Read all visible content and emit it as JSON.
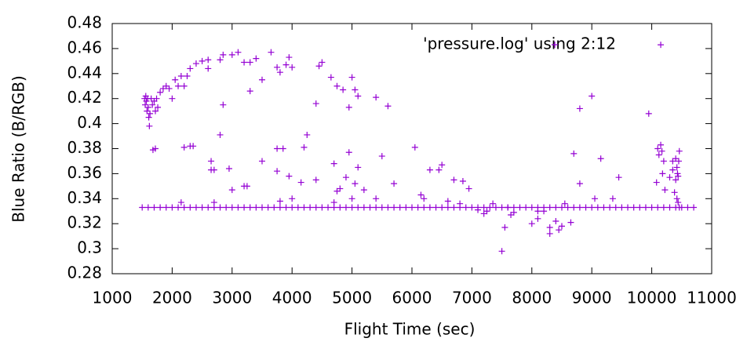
{
  "chart_data": {
    "type": "scatter",
    "xlabel": "Flight Time (sec)",
    "ylabel": "Blue Ratio (B/RGB)",
    "xlim": [
      1000,
      11000
    ],
    "xticks": [
      1000,
      2000,
      3000,
      4000,
      5000,
      6000,
      7000,
      8000,
      9000,
      10000,
      11000
    ],
    "ylim": [
      0.28,
      0.48
    ],
    "yticks": [
      0.28,
      0.3,
      0.32,
      0.34,
      0.36,
      0.38,
      0.4,
      0.42,
      0.44,
      0.46,
      0.48
    ],
    "legend": "top-right",
    "series": [
      {
        "name": "'pressure.log' using 2:12",
        "color": "#9400d3",
        "x": [
          1540,
          1550,
          1560,
          1570,
          1580,
          1590,
          1600,
          1610,
          1620,
          1630,
          1650,
          1670,
          1700,
          1720,
          1740,
          1760,
          1680,
          1720,
          1800,
          1850,
          1900,
          1950,
          2000,
          2050,
          2100,
          2150,
          2200,
          2250,
          2300,
          2400,
          2500,
          2600,
          2600,
          2800,
          2850,
          3000,
          3100,
          3200,
          3300,
          3400,
          3500,
          3650,
          3750,
          3800,
          3900,
          3950,
          4000,
          4450,
          4500,
          4650,
          4750,
          4850,
          4950,
          5000,
          5050,
          5100,
          5400,
          5600,
          4400,
          3300,
          2850,
          2200,
          2300,
          2350,
          2800,
          2650,
          2700,
          2650,
          2950,
          3000,
          3200,
          3250,
          3500,
          3750,
          3850,
          3750,
          3950,
          4200,
          4250,
          4150,
          4400,
          4700,
          4750,
          4800,
          4950,
          5000,
          5100,
          5050,
          5200,
          5500,
          6050,
          6300,
          6450,
          6500,
          6700,
          6850,
          5700,
          5400,
          4700,
          4900,
          4000,
          3800,
          2700,
          2150,
          6150,
          6200,
          6600,
          6800,
          6950,
          7100,
          7250,
          7350,
          7500,
          7550,
          7600,
          7700,
          7650,
          8000,
          8100,
          8200,
          8300,
          8300,
          8400,
          8500,
          8650,
          8550,
          8700,
          8800,
          8800,
          9000,
          9050,
          9150,
          9350,
          9450,
          9950,
          10150,
          10120,
          7200,
          8100,
          8450,
          10100,
          10150,
          10170,
          10200,
          10180,
          10220,
          10080,
          10350,
          10400,
          10420,
          10430,
          10440,
          10450,
          10460,
          10380,
          10400,
          10420,
          10440,
          10460,
          10300,
          10350,
          1500,
          1600,
          1700,
          1800,
          1900,
          2000,
          2100,
          2200,
          2300,
          2400,
          2500,
          2600,
          2700,
          2800,
          2900,
          3000,
          3100,
          3200,
          3300,
          3400,
          3500,
          3600,
          3700,
          3800,
          3900,
          4000,
          4100,
          4200,
          4300,
          4400,
          4500,
          4600,
          4700,
          4800,
          4900,
          5000,
          5100,
          5200,
          5300,
          5400,
          5500,
          5600,
          5700,
          5800,
          5900,
          6000,
          6100,
          6200,
          6300,
          6400,
          6500,
          6600,
          6700,
          6800,
          6900,
          7000,
          7100,
          7200,
          7300,
          7400,
          7500,
          7600,
          7700,
          7800,
          7900,
          8000,
          8100,
          8200,
          8300,
          8400,
          8500,
          8600,
          8700,
          8800,
          8900,
          9000,
          9100,
          9200,
          9300,
          9400,
          9500,
          9600,
          9700,
          9800,
          9900,
          10000,
          10100,
          10200,
          10300,
          10400,
          10500,
          10600,
          10700
        ],
        "values": [
          0.42,
          0.415,
          0.422,
          0.418,
          0.41,
          0.42,
          0.413,
          0.405,
          0.398,
          0.408,
          0.42,
          0.415,
          0.418,
          0.41,
          0.42,
          0.413,
          0.379,
          0.38,
          0.425,
          0.428,
          0.43,
          0.428,
          0.42,
          0.435,
          0.43,
          0.438,
          0.43,
          0.438,
          0.444,
          0.448,
          0.45,
          0.451,
          0.444,
          0.451,
          0.455,
          0.455,
          0.457,
          0.449,
          0.449,
          0.452,
          0.435,
          0.457,
          0.445,
          0.441,
          0.447,
          0.453,
          0.445,
          0.446,
          0.449,
          0.437,
          0.43,
          0.427,
          0.413,
          0.437,
          0.427,
          0.422,
          0.421,
          0.414,
          0.416,
          0.426,
          0.415,
          0.381,
          0.382,
          0.382,
          0.391,
          0.37,
          0.363,
          0.363,
          0.364,
          0.347,
          0.35,
          0.35,
          0.37,
          0.38,
          0.38,
          0.362,
          0.358,
          0.381,
          0.391,
          0.353,
          0.355,
          0.368,
          0.346,
          0.348,
          0.377,
          0.34,
          0.365,
          0.352,
          0.347,
          0.374,
          0.381,
          0.363,
          0.363,
          0.367,
          0.355,
          0.354,
          0.352,
          0.34,
          0.337,
          0.357,
          0.34,
          0.338,
          0.337,
          0.337,
          0.343,
          0.34,
          0.338,
          0.336,
          0.348,
          0.331,
          0.33,
          0.336,
          0.298,
          0.317,
          0.333,
          0.329,
          0.327,
          0.32,
          0.324,
          0.33,
          0.312,
          0.317,
          0.322,
          0.318,
          0.321,
          0.336,
          0.376,
          0.352,
          0.412,
          0.422,
          0.34,
          0.372,
          0.34,
          0.357,
          0.408,
          0.463,
          0.375,
          0.328,
          0.33,
          0.315,
          0.38,
          0.383,
          0.378,
          0.37,
          0.36,
          0.347,
          0.353,
          0.363,
          0.372,
          0.365,
          0.36,
          0.358,
          0.37,
          0.378,
          0.345,
          0.355,
          0.34,
          0.337,
          0.333,
          0.357,
          0.37,
          0.333,
          0.333,
          0.333,
          0.333,
          0.333,
          0.333,
          0.333,
          0.333,
          0.333,
          0.333,
          0.333,
          0.333,
          0.333,
          0.333,
          0.333,
          0.333,
          0.333,
          0.333,
          0.333,
          0.333,
          0.333,
          0.333,
          0.333,
          0.333,
          0.333,
          0.333,
          0.333,
          0.333,
          0.333,
          0.333,
          0.333,
          0.333,
          0.333,
          0.333,
          0.333,
          0.333,
          0.333,
          0.333,
          0.333,
          0.333,
          0.333,
          0.333,
          0.333,
          0.333,
          0.333,
          0.333,
          0.333,
          0.333,
          0.333,
          0.333,
          0.333,
          0.333,
          0.333,
          0.333,
          0.333,
          0.333,
          0.333,
          0.333,
          0.333,
          0.333,
          0.333,
          0.333,
          0.333,
          0.333,
          0.333,
          0.333,
          0.333,
          0.333,
          0.333,
          0.333,
          0.333,
          0.333,
          0.333,
          0.333,
          0.333,
          0.333,
          0.333,
          0.333,
          0.333,
          0.333,
          0.333,
          0.333,
          0.333,
          0.333,
          0.333,
          0.333,
          0.333,
          0.333,
          0.333,
          0.333,
          0.333,
          0.333,
          0.333
        ]
      }
    ]
  }
}
